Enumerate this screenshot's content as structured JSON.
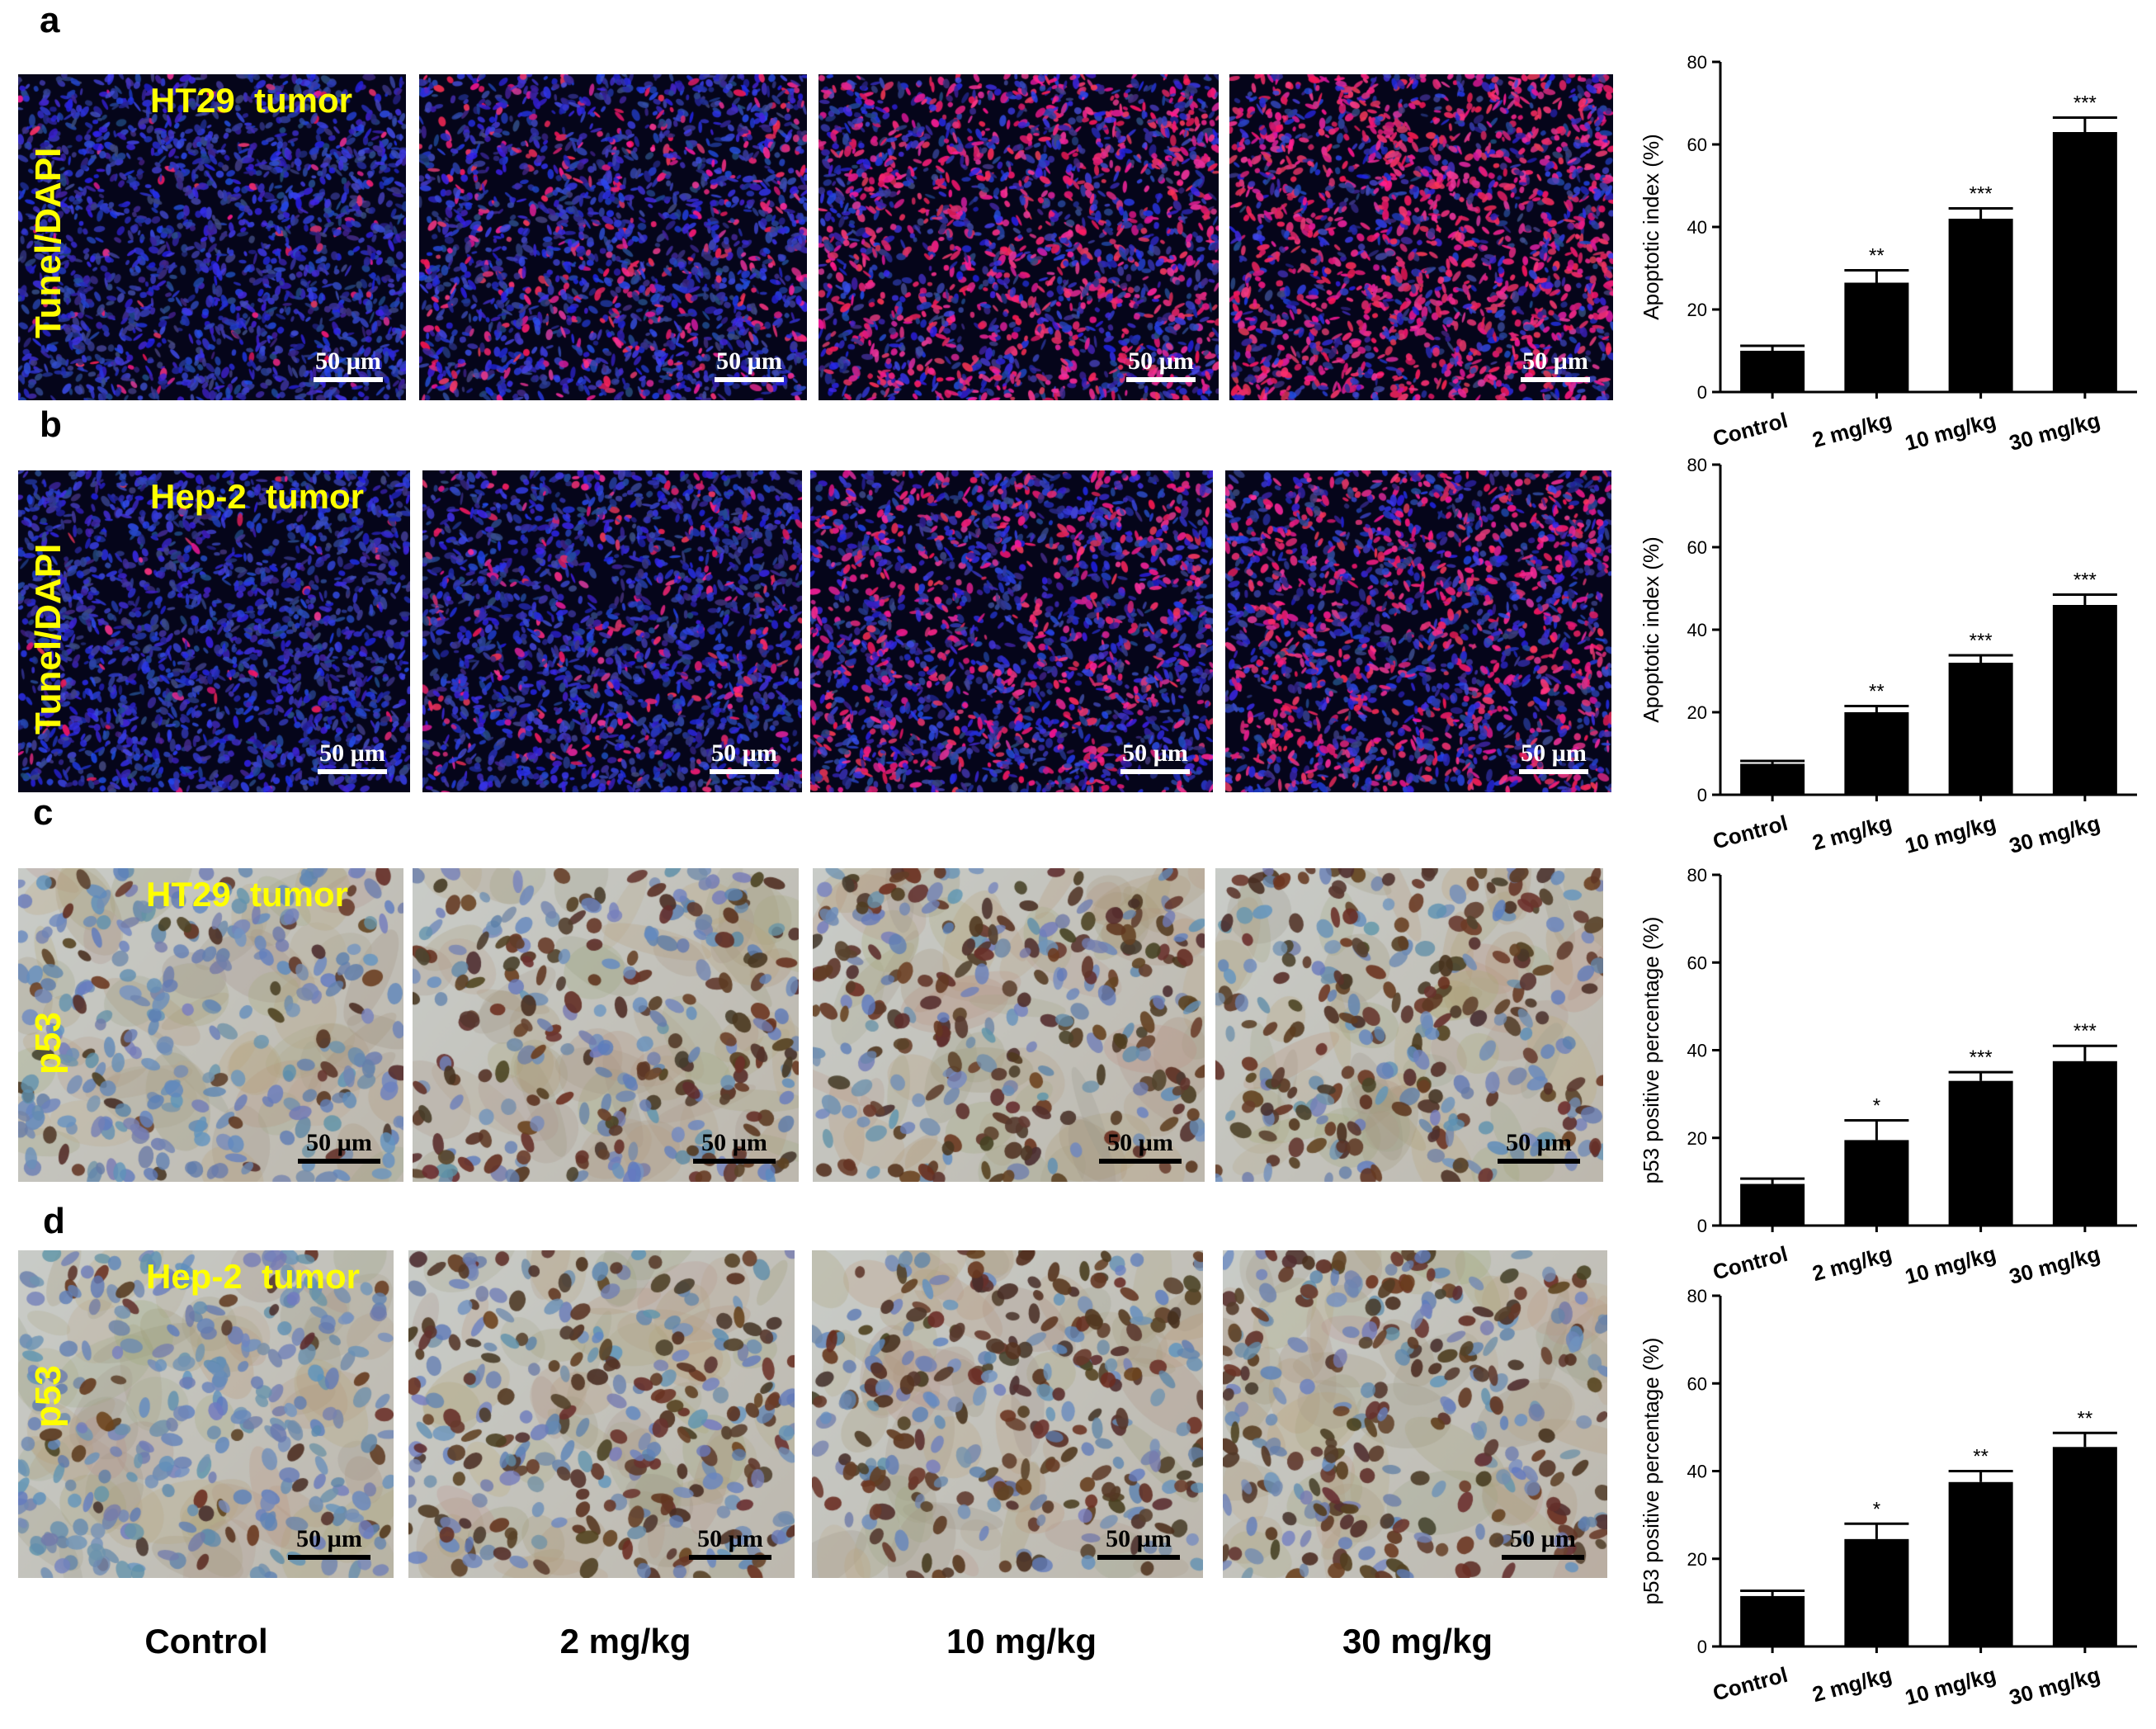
{
  "panels": [
    {
      "letter": "a",
      "tumor": "HT29  tumor",
      "stain": "Tunel/DAPI",
      "scale": "50 µm"
    },
    {
      "letter": "b",
      "tumor": "Hep-2  tumor",
      "stain": "Tunel/DAPI",
      "scale": "50 µm"
    },
    {
      "letter": "c",
      "tumor": "HT29  tumor",
      "stain": "p53",
      "scale": "50 µm"
    },
    {
      "letter": "d",
      "tumor": "Hep-2  tumor",
      "stain": "p53",
      "scale": "50 µm"
    }
  ],
  "conditions": [
    "Control",
    "2 mg/kg",
    "10 mg/kg",
    "30 mg/kg"
  ],
  "colors": {
    "label_yellow": "#ffff00",
    "dapi_blue": "#3a3ad6",
    "tunel_red": "#e0205a",
    "hematoxylin": "#6f8fb8",
    "dab_brown": "#5a3a28",
    "bar": "#000000"
  },
  "chart_data": [
    {
      "type": "bar",
      "panel": "a",
      "categories": [
        "Control",
        "2 mg/kg",
        "10 mg/kg",
        "30 mg/kg"
      ],
      "values": [
        10,
        26.5,
        42,
        63
      ],
      "errors": [
        1.2,
        3,
        2.5,
        3.5
      ],
      "significance": [
        "",
        "**",
        "***",
        "***"
      ],
      "ylabel": "Apoptotic index (%)",
      "ylim": [
        0,
        80
      ],
      "yticks": [
        0,
        20,
        40,
        60,
        80
      ]
    },
    {
      "type": "bar",
      "panel": "b",
      "categories": [
        "Control",
        "2 mg/kg",
        "10 mg/kg",
        "30 mg/kg"
      ],
      "values": [
        7.5,
        20,
        32,
        46
      ],
      "errors": [
        0.7,
        1.5,
        1.8,
        2.5
      ],
      "significance": [
        "",
        "**",
        "***",
        "***"
      ],
      "ylabel": "Apoptotic index (%)",
      "ylim": [
        0,
        80
      ],
      "yticks": [
        0,
        20,
        40,
        60,
        80
      ]
    },
    {
      "type": "bar",
      "panel": "c",
      "categories": [
        "Control",
        "2 mg/kg",
        "10 mg/kg",
        "30 mg/kg"
      ],
      "values": [
        9.5,
        19.5,
        33,
        37.5
      ],
      "errors": [
        1.2,
        4.5,
        2,
        3.5
      ],
      "significance": [
        "",
        "*",
        "***",
        "***"
      ],
      "ylabel": "p53 positive percentage (%)",
      "ylim": [
        0,
        80
      ],
      "yticks": [
        0,
        20,
        40,
        60,
        80
      ]
    },
    {
      "type": "bar",
      "panel": "d",
      "categories": [
        "Control",
        "2 mg/kg",
        "10 mg/kg",
        "30 mg/kg"
      ],
      "values": [
        11.5,
        24.5,
        37.5,
        45.5
      ],
      "errors": [
        1.2,
        3.5,
        2.5,
        3.2
      ],
      "significance": [
        "",
        "*",
        "**",
        "**"
      ],
      "ylabel": "p53 positive percentage (%)",
      "ylim": [
        0,
        80
      ],
      "yticks": [
        0,
        20,
        40,
        60,
        80
      ]
    }
  ]
}
